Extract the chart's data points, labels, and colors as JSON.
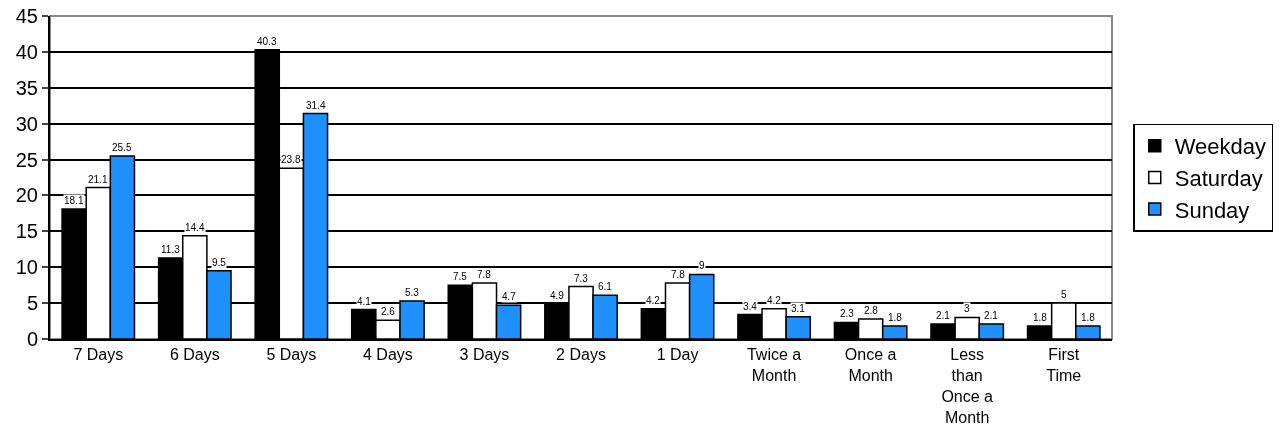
{
  "chart_data": {
    "type": "bar",
    "categories": [
      "7 Days",
      "6 Days",
      "5 Days",
      "4 Days",
      "3 Days",
      "2 Days",
      "1 Day",
      "Twice a Month",
      "Once a Month",
      "Less than Once a Month",
      "First Time"
    ],
    "series": [
      {
        "name": "Weekday",
        "color": "#000000",
        "values": [
          18.1,
          11.3,
          40.3,
          4.1,
          7.5,
          4.9,
          4.2,
          3.4,
          2.3,
          2.1,
          1.8
        ]
      },
      {
        "name": "Saturday",
        "color": "#ffffff",
        "values": [
          21.1,
          14.4,
          23.8,
          2.6,
          7.8,
          7.3,
          7.8,
          4.2,
          2.8,
          3,
          5
        ]
      },
      {
        "name": "Sunday",
        "color": "#1e90ff",
        "values": [
          25.5,
          9.5,
          31.4,
          5.3,
          4.7,
          6.1,
          9,
          3.1,
          1.8,
          2.1,
          1.8
        ]
      }
    ],
    "ylim": [
      0,
      45
    ],
    "yticks": [
      0,
      5,
      10,
      15,
      20,
      25,
      30,
      35,
      40,
      45
    ],
    "grid": "y",
    "legend": "right",
    "data_labels": true
  }
}
